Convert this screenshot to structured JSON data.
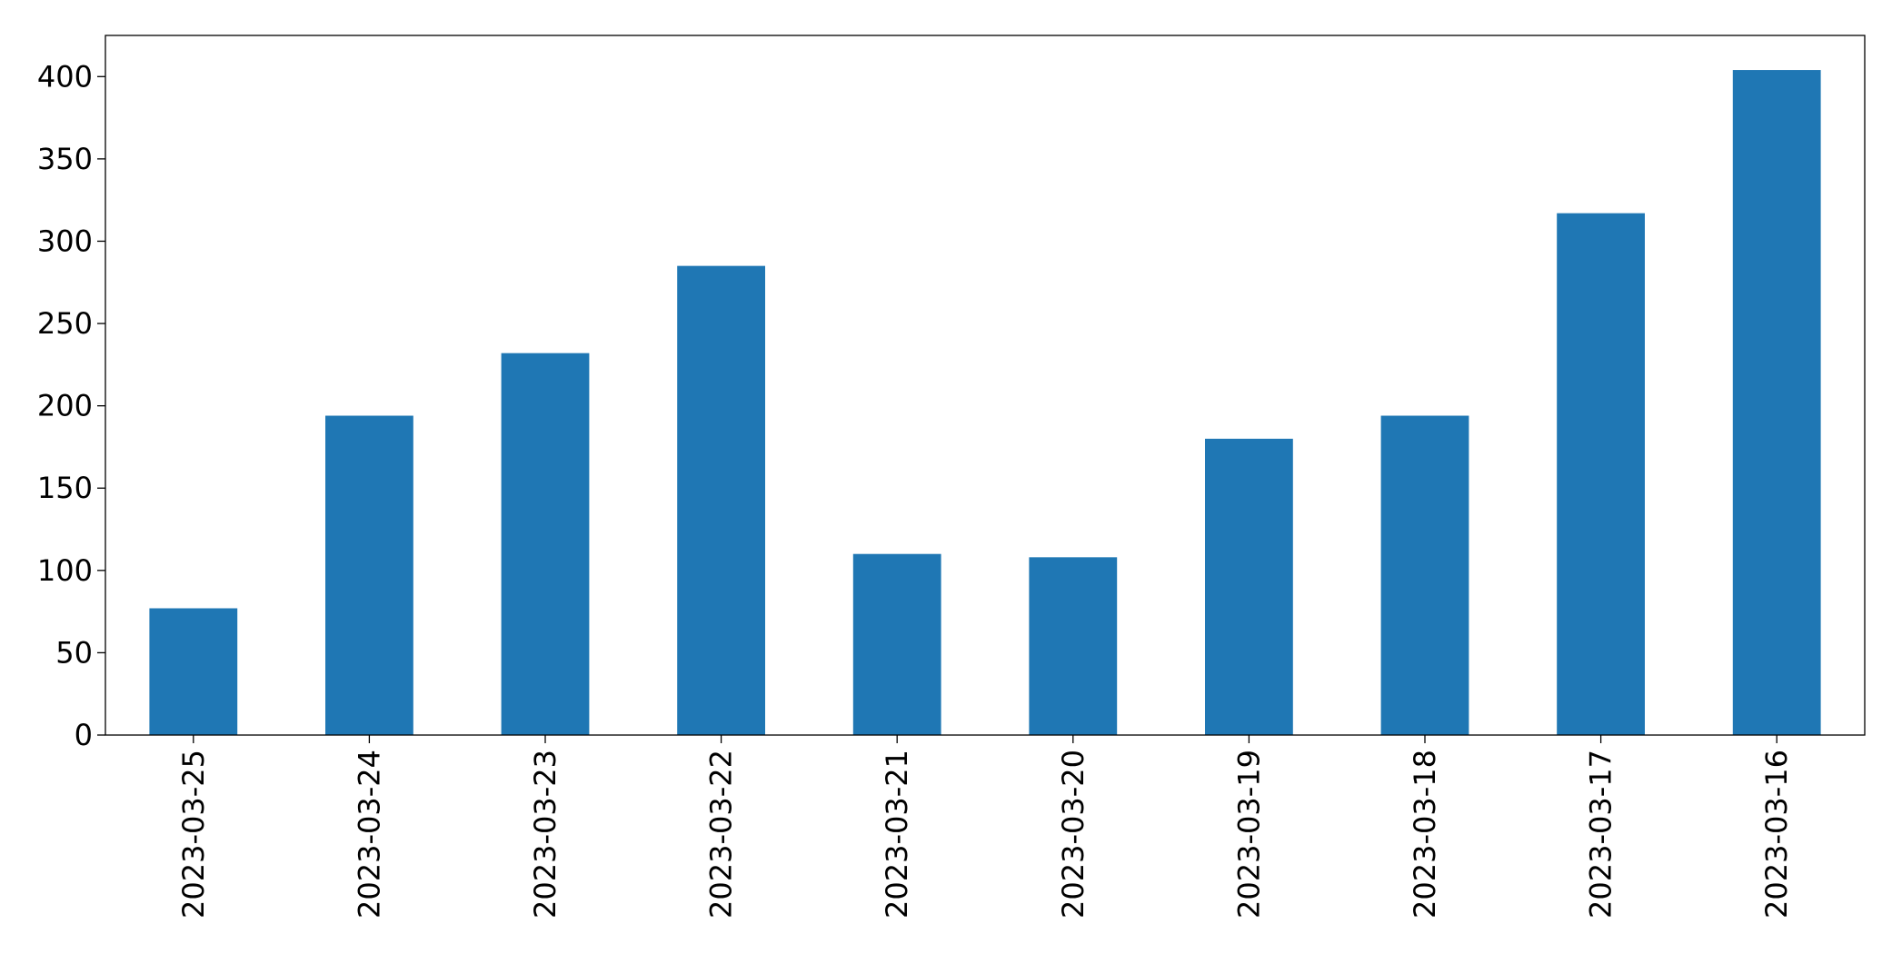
{
  "chart_data": {
    "type": "bar",
    "categories": [
      "2023-03-25",
      "2023-03-24",
      "2023-03-23",
      "2023-03-22",
      "2023-03-21",
      "2023-03-20",
      "2023-03-19",
      "2023-03-18",
      "2023-03-17",
      "2023-03-16"
    ],
    "values": [
      77,
      194,
      232,
      285,
      110,
      108,
      180,
      194,
      317,
      404
    ],
    "color": "#1f77b4",
    "ylim": [
      0,
      425
    ],
    "yticks": [
      0,
      50,
      100,
      150,
      200,
      250,
      300,
      350,
      400
    ],
    "grid": false
  }
}
